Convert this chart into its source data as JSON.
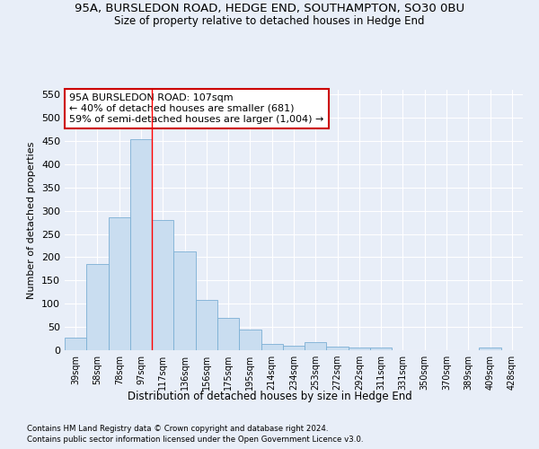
{
  "title": "95A, BURSLEDON ROAD, HEDGE END, SOUTHAMPTON, SO30 0BU",
  "subtitle": "Size of property relative to detached houses in Hedge End",
  "xlabel": "Distribution of detached houses by size in Hedge End",
  "ylabel": "Number of detached properties",
  "categories": [
    "39sqm",
    "58sqm",
    "78sqm",
    "97sqm",
    "117sqm",
    "136sqm",
    "156sqm",
    "175sqm",
    "195sqm",
    "214sqm",
    "234sqm",
    "253sqm",
    "272sqm",
    "292sqm",
    "311sqm",
    "331sqm",
    "350sqm",
    "370sqm",
    "389sqm",
    "409sqm",
    "428sqm"
  ],
  "values": [
    28,
    185,
    285,
    453,
    280,
    212,
    108,
    70,
    44,
    13,
    10,
    18,
    8,
    6,
    5,
    0,
    0,
    0,
    0,
    5,
    0
  ],
  "bar_color": "#c9ddf0",
  "bar_edge_color": "#7bafd4",
  "red_line_x": 3.5,
  "annotation_text": "95A BURSLEDON ROAD: 107sqm\n← 40% of detached houses are smaller (681)\n59% of semi-detached houses are larger (1,004) →",
  "annotation_box_color": "#ffffff",
  "annotation_box_edge_color": "#cc0000",
  "ylim": [
    0,
    560
  ],
  "yticks": [
    0,
    50,
    100,
    150,
    200,
    250,
    300,
    350,
    400,
    450,
    500,
    550
  ],
  "footer_line1": "Contains HM Land Registry data © Crown copyright and database right 2024.",
  "footer_line2": "Contains public sector information licensed under the Open Government Licence v3.0.",
  "background_color": "#e8eef8",
  "grid_color": "#ffffff",
  "title_fontsize": 9.5,
  "subtitle_fontsize": 8.5,
  "annotation_fontsize": 8
}
